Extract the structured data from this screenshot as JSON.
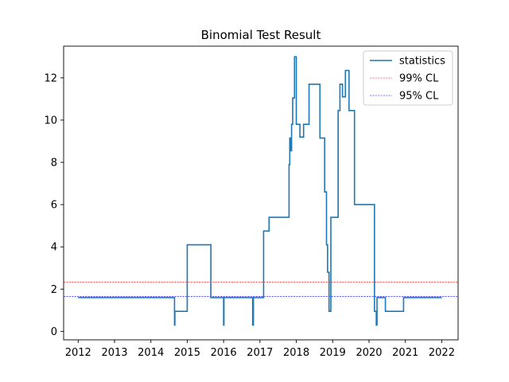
{
  "chart_data": {
    "type": "line",
    "title": "Binomial Test Result",
    "xlabel": "",
    "ylabel": "",
    "xlim": [
      2011.6,
      2022.45
    ],
    "ylim": [
      -0.4,
      13.5
    ],
    "x_ticks": [
      2012,
      2013,
      2014,
      2015,
      2016,
      2017,
      2018,
      2019,
      2020,
      2021,
      2022
    ],
    "x_tick_labels": [
      "2012",
      "2013",
      "2014",
      "2015",
      "2016",
      "2017",
      "2018",
      "2019",
      "2020",
      "2021",
      "2022"
    ],
    "y_ticks": [
      0,
      2,
      4,
      6,
      8,
      10,
      12
    ],
    "y_tick_labels": [
      "0",
      "2",
      "4",
      "6",
      "8",
      "10",
      "12"
    ],
    "grid": false,
    "legend_position": "top-right",
    "legend": [
      "statistics",
      "99% CL",
      "95% CL"
    ],
    "colors": {
      "statistics": "#1f77b4",
      "cl99": "#ff0000",
      "cl95": "#0000ff"
    },
    "reference_lines": [
      {
        "name": "99% CL",
        "y": 2.33,
        "color": "#ff0000",
        "style": "dashed"
      },
      {
        "name": "95% CL",
        "y": 1.645,
        "color": "#0000ff",
        "style": "dashed"
      }
    ],
    "series": [
      {
        "name": "statistics",
        "x": [
          2012.0,
          2014.65,
          2014.65,
          2014.66,
          2014.66,
          2015.0,
          2015.0,
          2015.65,
          2015.65,
          2016.0,
          2016.0,
          2016.01,
          2016.01,
          2016.8,
          2016.8,
          2016.82,
          2016.82,
          2016.85,
          2016.85,
          2017.1,
          2017.1,
          2017.25,
          2017.25,
          2017.8,
          2017.8,
          2017.82,
          2017.82,
          2017.85,
          2017.85,
          2017.87,
          2017.87,
          2017.9,
          2017.9,
          2017.95,
          2017.95,
          2018.0,
          2018.0,
          2018.1,
          2018.1,
          2018.2,
          2018.2,
          2018.35,
          2018.35,
          2018.6,
          2018.6,
          2018.65,
          2018.65,
          2018.78,
          2018.78,
          2018.83,
          2018.83,
          2018.86,
          2018.86,
          2018.9,
          2018.9,
          2018.95,
          2018.95,
          2019.15,
          2019.15,
          2019.2,
          2019.2,
          2019.27,
          2019.27,
          2019.35,
          2019.35,
          2019.45,
          2019.45,
          2019.6,
          2019.6,
          2020.15,
          2020.15,
          2020.2,
          2020.2,
          2020.22,
          2020.22,
          2020.45,
          2020.45,
          2020.95,
          2020.95,
          2021.0,
          2021.0,
          2022.0
        ],
        "y": [
          1.6,
          1.6,
          0.3,
          0.3,
          0.95,
          0.95,
          4.1,
          4.1,
          1.6,
          1.6,
          0.3,
          0.3,
          1.6,
          1.6,
          0.3,
          0.3,
          1.6,
          1.6,
          1.6,
          1.6,
          4.75,
          4.75,
          5.4,
          5.4,
          7.9,
          7.9,
          9.15,
          9.15,
          8.55,
          8.55,
          9.8,
          9.8,
          11.05,
          11.05,
          13.0,
          13.0,
          9.8,
          9.8,
          9.2,
          9.2,
          9.8,
          9.8,
          11.7,
          11.7,
          11.7,
          11.7,
          9.15,
          9.15,
          6.6,
          6.6,
          4.1,
          4.1,
          2.8,
          2.8,
          0.95,
          0.95,
          5.4,
          5.4,
          10.45,
          10.45,
          11.7,
          11.7,
          11.1,
          11.1,
          12.35,
          12.35,
          10.45,
          10.45,
          6.0,
          6.0,
          0.95,
          0.95,
          0.3,
          0.3,
          1.6,
          1.6,
          0.95,
          0.95,
          1.6,
          1.6,
          1.6,
          1.6
        ]
      }
    ]
  }
}
